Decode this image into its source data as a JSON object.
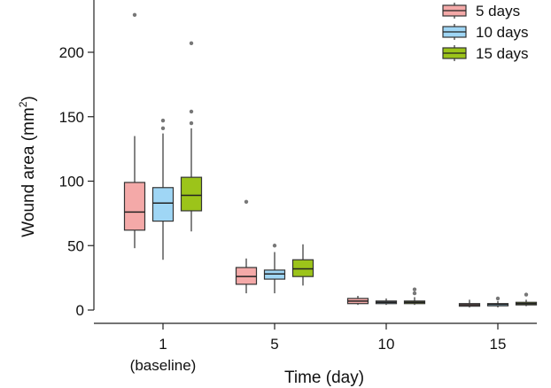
{
  "chart_data": {
    "type": "box",
    "title": "",
    "xlabel": "Time (day)",
    "ylabel_main": "Wound area (mm",
    "ylabel_sup": "2",
    "ylabel_close": ")",
    "ylim": [
      -15,
      240
    ],
    "yticks": [
      0,
      50,
      100,
      150,
      200
    ],
    "yticklabels": [
      "0",
      "50",
      "100",
      "150",
      "200"
    ],
    "categories": [
      "1",
      "5",
      "10",
      "15"
    ],
    "category_sublabels": [
      "(baseline)",
      "",
      "",
      ""
    ],
    "legend_position": "top-right",
    "series": [
      {
        "name": "5 days",
        "color": "#f4a9a8",
        "stats": [
          {
            "min": 48,
            "q1": 62,
            "median": 76,
            "q3": 99,
            "max": 135,
            "outliers": [
              229
            ]
          },
          {
            "min": 13,
            "q1": 20,
            "median": 26,
            "q3": 33,
            "max": 40,
            "outliers": [
              84
            ]
          },
          {
            "min": 4,
            "q1": 5,
            "median": 7,
            "q3": 9,
            "max": 11,
            "outliers": []
          },
          {
            "min": 2,
            "q1": 3,
            "median": 4,
            "q3": 5,
            "max": 8,
            "outliers": []
          }
        ]
      },
      {
        "name": "10 days",
        "color": "#9fd6f5",
        "stats": [
          {
            "min": 39,
            "q1": 69,
            "median": 83,
            "q3": 95,
            "max": 137,
            "outliers": [
              141,
              147
            ]
          },
          {
            "min": 13,
            "q1": 24,
            "median": 28,
            "q3": 31,
            "max": 45,
            "outliers": [
              50
            ]
          },
          {
            "min": 4,
            "q1": 5,
            "median": 6,
            "q3": 7,
            "max": 9,
            "outliers": []
          },
          {
            "min": 2,
            "q1": 4,
            "median": 4.5,
            "q3": 5,
            "max": 7,
            "outliers": [
              9
            ]
          }
        ]
      },
      {
        "name": "15 days",
        "color": "#9cc41a",
        "stats": [
          {
            "min": 61,
            "q1": 77,
            "median": 89,
            "q3": 103,
            "max": 141,
            "outliers": [
              145,
              154,
              207
            ]
          },
          {
            "min": 19,
            "q1": 26,
            "median": 32,
            "q3": 39,
            "max": 51,
            "outliers": []
          },
          {
            "min": 4,
            "q1": 5,
            "median": 6,
            "q3": 7,
            "max": 10,
            "outliers": [
              13,
              16
            ]
          },
          {
            "min": 3,
            "q1": 4,
            "median": 5,
            "q3": 6,
            "max": 8,
            "outliers": [
              12
            ]
          }
        ]
      }
    ]
  }
}
